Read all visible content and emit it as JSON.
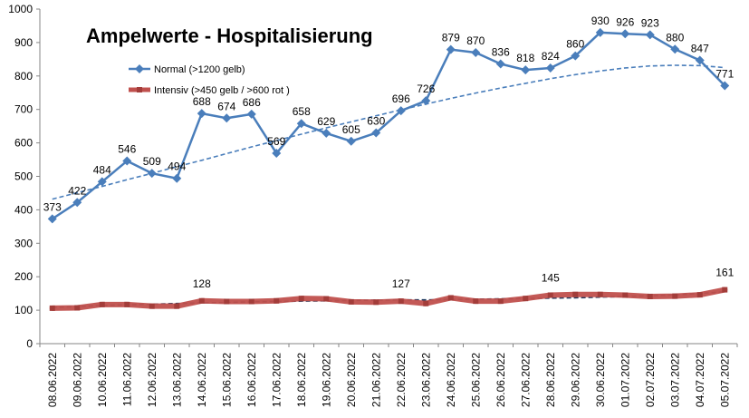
{
  "chart_data": {
    "type": "line",
    "title": "Ampelwerte - Hospitalisierung",
    "xlabel": "",
    "ylabel": "",
    "ylim": [
      0,
      1000
    ],
    "yticks": [
      0,
      100,
      200,
      300,
      400,
      500,
      600,
      700,
      800,
      900,
      1000
    ],
    "grid": false,
    "legend_position": "upper-left",
    "categories": [
      "08.06.2022",
      "09.06.2022",
      "10.06.2022",
      "11.06.2022",
      "12.06.2022",
      "13.06.2022",
      "14.06.2022",
      "15.06.2022",
      "16.06.2022",
      "17.06.2022",
      "18.06.2022",
      "19.06.2022",
      "20.06.2022",
      "21.06.2022",
      "22.06.2022",
      "23.06.2022",
      "24.06.2022",
      "25.06.2022",
      "26.06.2022",
      "27.06.2022",
      "28.06.2022",
      "29.06.2022",
      "30.06.2022",
      "01.07.2022",
      "02.07.2022",
      "03.07.2022",
      "04.07.2022",
      "05.07.2022"
    ],
    "series": [
      {
        "name": "Normal (>1200 gelb)",
        "color": "#4A7EBB",
        "marker": "diamond",
        "values": [
          373,
          422,
          484,
          546,
          509,
          494,
          688,
          674,
          686,
          569,
          658,
          629,
          605,
          630,
          696,
          726,
          879,
          870,
          836,
          818,
          824,
          860,
          930,
          926,
          923,
          880,
          847,
          771
        ],
        "labels": [
          "373",
          "422",
          "484",
          "546",
          "509",
          "494",
          "688",
          "674",
          "686",
          "569",
          "658",
          "629",
          "605",
          "630",
          "696",
          "726",
          "879",
          "870",
          "836",
          "818",
          "824",
          "860",
          "930",
          "926",
          "923",
          "880",
          "847",
          "771"
        ],
        "trend": {
          "style": "dashed",
          "values": [
            432,
            451,
            470,
            490,
            509,
            529,
            548,
            568,
            588,
            607,
            626,
            645,
            663,
            681,
            699,
            716,
            733,
            749,
            764,
            778,
            792,
            804,
            815,
            824,
            830,
            832,
            831,
            825
          ]
        }
      },
      {
        "name": "Intensiv (>450 gelb / >600 rot )",
        "color": "#C0504D",
        "marker": "square",
        "values": [
          106,
          107,
          117,
          117,
          112,
          112,
          128,
          126,
          126,
          128,
          135,
          134,
          125,
          124,
          127,
          120,
          137,
          127,
          127,
          135,
          145,
          147,
          147,
          145,
          141,
          142,
          146,
          161
        ],
        "labels": [
          "",
          "",
          "",
          "",
          "",
          "",
          "128",
          "",
          "",
          "",
          "",
          "",
          "",
          "",
          "127",
          "",
          "",
          "",
          "",
          "",
          "145",
          "",
          "",
          "",
          "",
          "",
          "",
          "161"
        ],
        "trend": {
          "style": "dashed",
          "values": [
            108,
            111,
            114,
            116,
            118,
            120,
            122,
            123,
            125,
            126,
            127,
            128,
            129,
            130,
            131,
            131,
            132,
            133,
            134,
            135,
            136,
            137,
            139,
            141,
            143,
            146,
            150,
            155
          ]
        }
      }
    ]
  }
}
